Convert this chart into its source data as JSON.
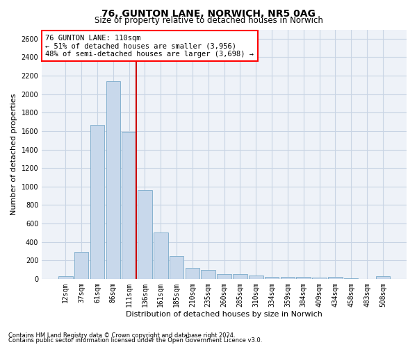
{
  "title": "76, GUNTON LANE, NORWICH, NR5 0AG",
  "subtitle": "Size of property relative to detached houses in Norwich",
  "xlabel": "Distribution of detached houses by size in Norwich",
  "ylabel": "Number of detached properties",
  "footnote1": "Contains HM Land Registry data © Crown copyright and database right 2024.",
  "footnote2": "Contains public sector information licensed under the Open Government Licence v3.0.",
  "annotation_line1": "76 GUNTON LANE: 110sqm",
  "annotation_line2": "← 51% of detached houses are smaller (3,956)",
  "annotation_line3": "48% of semi-detached houses are larger (3,698) →",
  "bar_color": "#c8d8eb",
  "bar_edge_color": "#7aaaca",
  "vline_color": "#cc0000",
  "vline_x_index": 4,
  "categories": [
    "12sqm",
    "37sqm",
    "61sqm",
    "86sqm",
    "111sqm",
    "136sqm",
    "161sqm",
    "185sqm",
    "210sqm",
    "235sqm",
    "260sqm",
    "285sqm",
    "310sqm",
    "334sqm",
    "359sqm",
    "384sqm",
    "409sqm",
    "434sqm",
    "458sqm",
    "483sqm",
    "508sqm"
  ],
  "values": [
    30,
    295,
    1670,
    2140,
    1590,
    960,
    505,
    250,
    120,
    100,
    50,
    50,
    35,
    20,
    25,
    20,
    15,
    20,
    5,
    0,
    30
  ],
  "ylim": [
    0,
    2700
  ],
  "yticks": [
    0,
    200,
    400,
    600,
    800,
    1000,
    1200,
    1400,
    1600,
    1800,
    2000,
    2200,
    2400,
    2600
  ],
  "grid_color": "#c8d4e4",
  "bg_color": "#eef2f8",
  "title_fontsize": 10,
  "subtitle_fontsize": 8.5,
  "xlabel_fontsize": 8,
  "ylabel_fontsize": 8,
  "tick_fontsize": 7,
  "annotation_fontsize": 7.5,
  "footnote_fontsize": 6
}
